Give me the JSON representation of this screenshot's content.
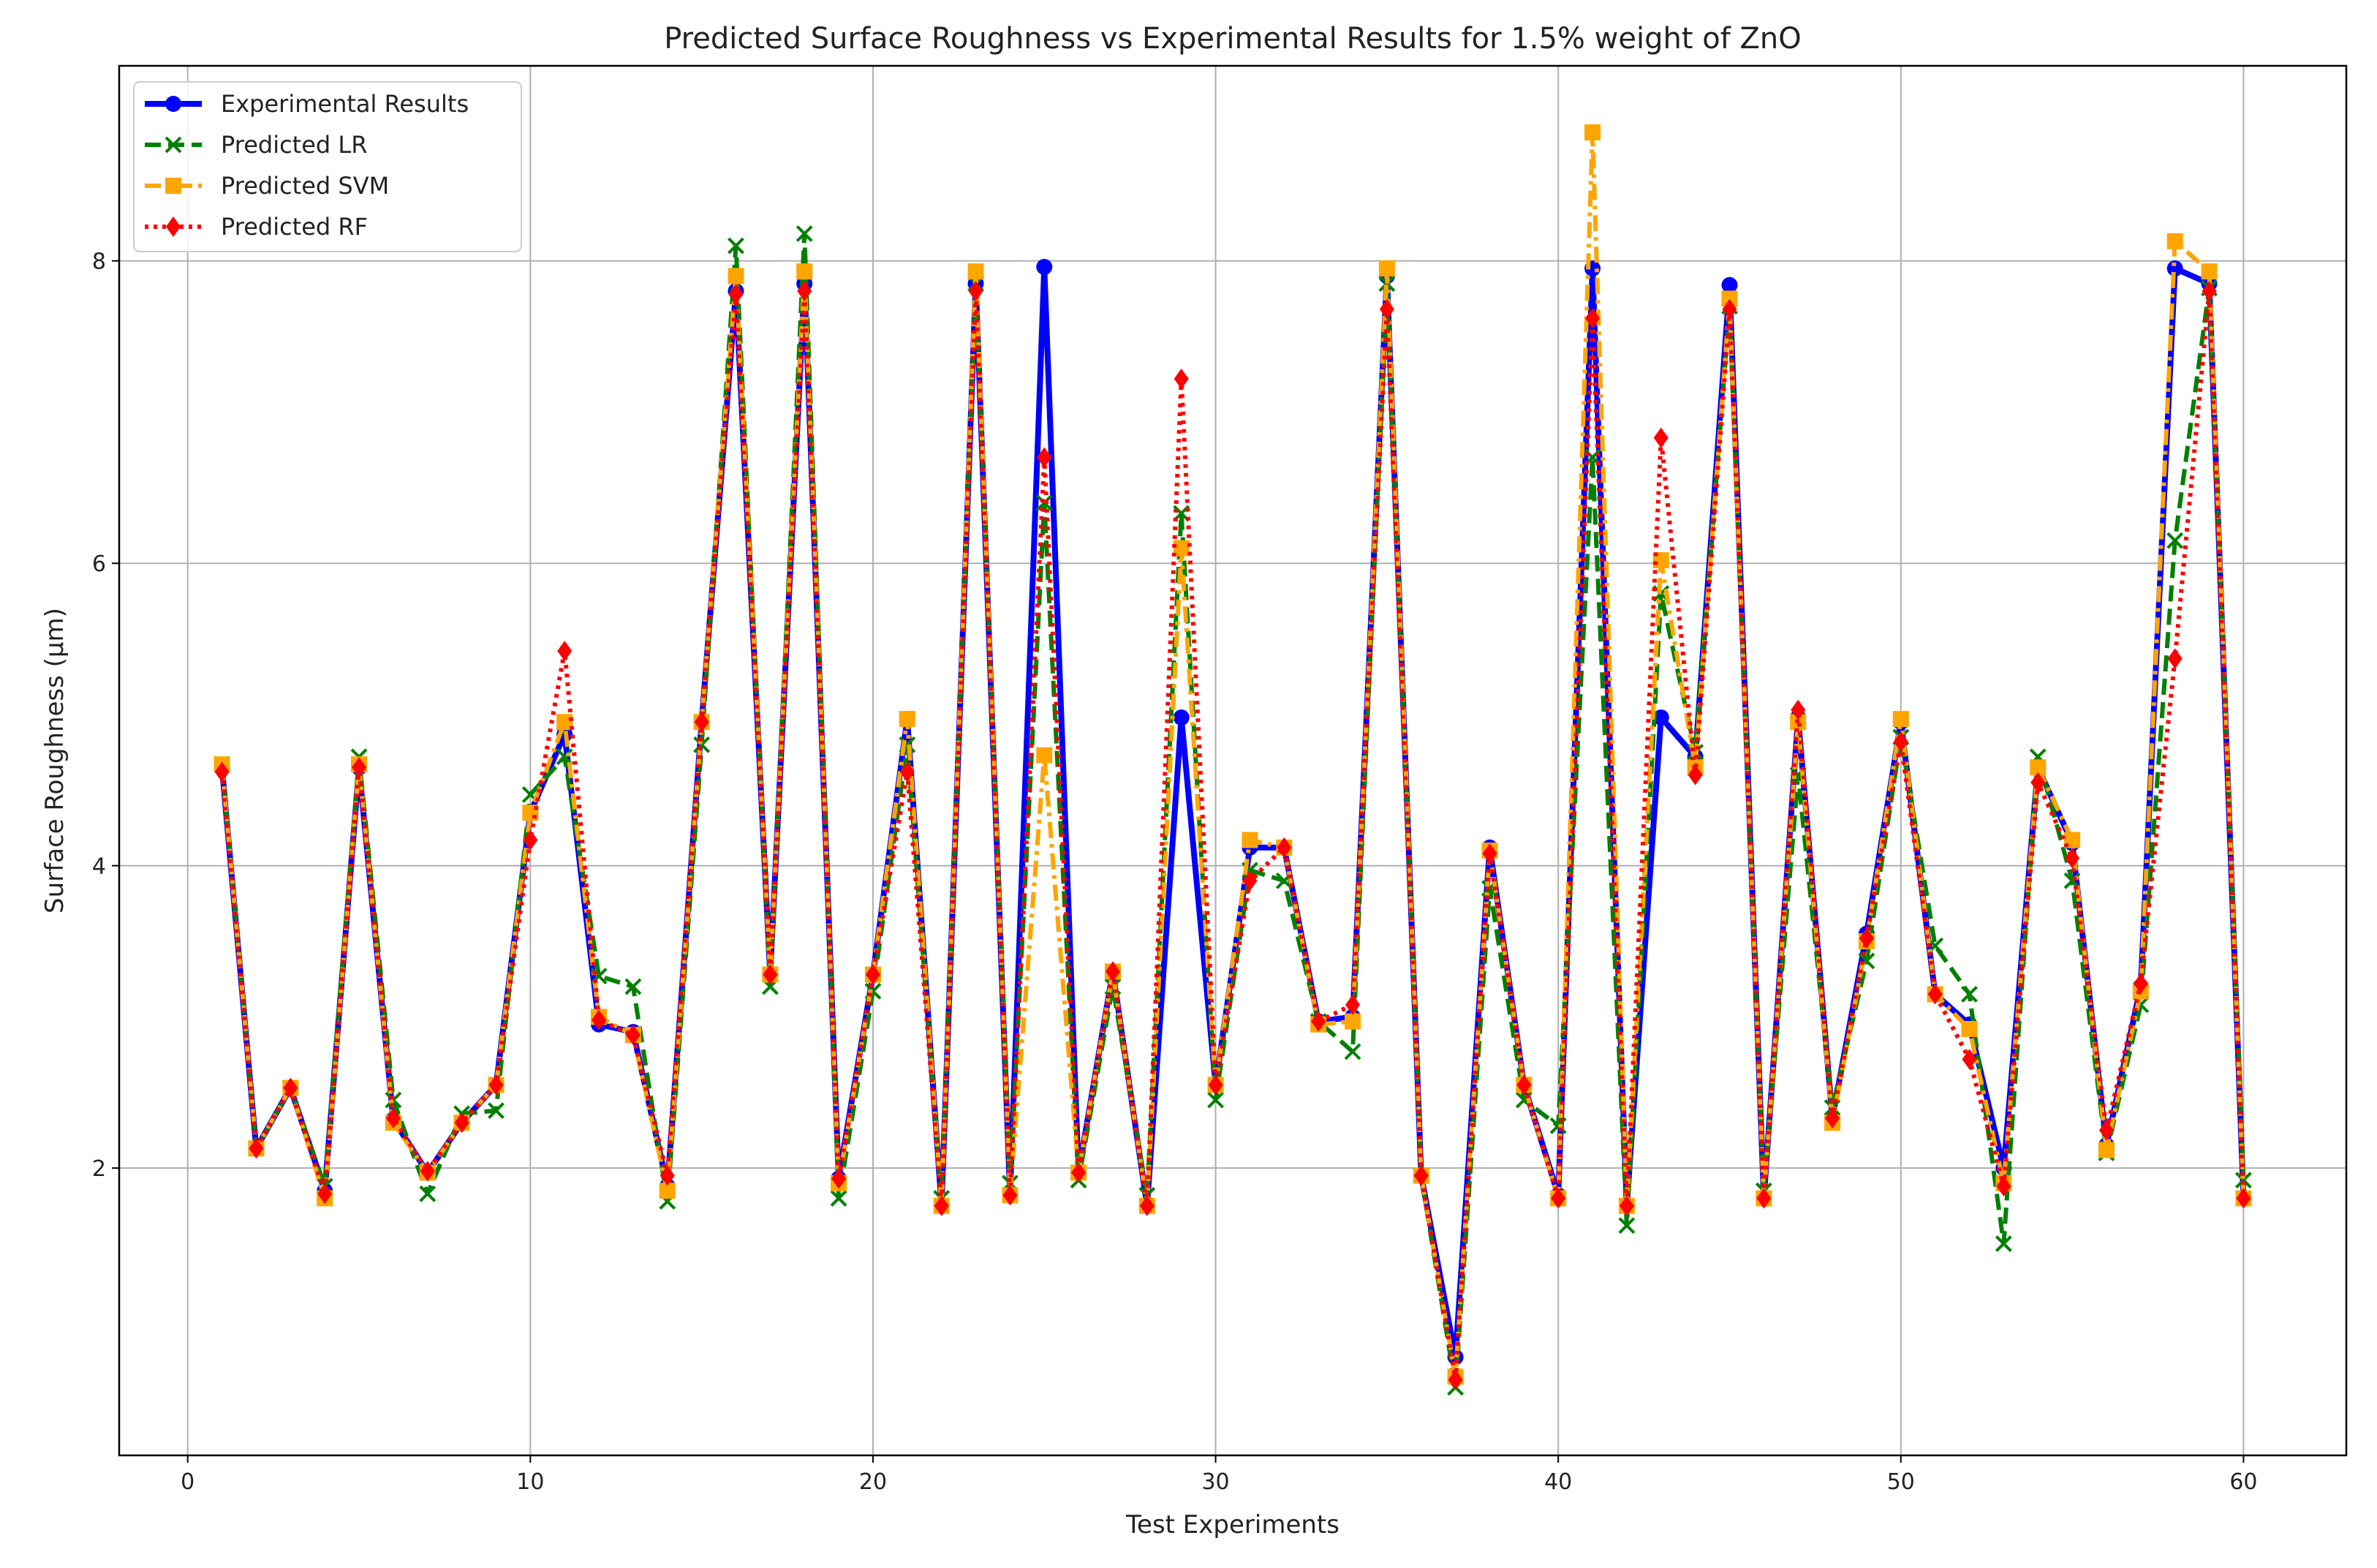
{
  "chart_data": {
    "type": "line",
    "title": "Predicted Surface Roughness vs Experimental Results for 1.5% weight of ZnO",
    "xlabel": "Test Experiments",
    "ylabel": "Surface Roughness (µm)",
    "xlim": [
      -2,
      63
    ],
    "ylim": [
      0.1,
      9.29
    ],
    "xticks": [
      0,
      10,
      20,
      30,
      40,
      50,
      60
    ],
    "yticks": [
      2,
      4,
      6,
      8
    ],
    "grid": true,
    "legend_position": "top-left",
    "x": [
      1,
      2,
      3,
      4,
      5,
      6,
      7,
      8,
      9,
      10,
      11,
      12,
      13,
      14,
      15,
      16,
      17,
      18,
      19,
      20,
      21,
      22,
      23,
      24,
      25,
      26,
      27,
      28,
      29,
      30,
      31,
      32,
      33,
      34,
      35,
      36,
      37,
      38,
      39,
      40,
      41,
      42,
      43,
      44,
      45,
      46,
      47,
      48,
      49,
      50,
      51,
      52,
      53,
      54,
      55,
      56,
      57,
      58,
      59,
      60
    ],
    "series": [
      {
        "name": "Experimental Results",
        "color": "#0000ff",
        "marker": "circle",
        "style": "solid",
        "values": [
          4.65,
          2.13,
          2.53,
          1.85,
          4.65,
          2.32,
          1.97,
          2.3,
          2.55,
          4.35,
          4.87,
          2.95,
          2.9,
          1.88,
          4.95,
          7.8,
          3.28,
          7.85,
          1.93,
          3.28,
          4.97,
          1.75,
          7.85,
          1.82,
          7.96,
          1.97,
          3.3,
          1.75,
          4.98,
          2.55,
          4.12,
          4.12,
          2.97,
          3.0,
          7.9,
          1.95,
          0.75,
          4.12,
          2.55,
          1.82,
          7.95,
          1.75,
          4.98,
          4.72,
          7.84,
          1.8,
          4.98,
          2.33,
          3.55,
          4.95,
          3.15,
          2.95,
          2.0,
          4.65,
          4.15,
          2.15,
          3.2,
          7.95,
          7.85,
          1.8
        ]
      },
      {
        "name": "Predicted LR",
        "color": "#008000",
        "marker": "x",
        "style": "dashed",
        "values": [
          4.67,
          2.13,
          2.53,
          1.88,
          4.72,
          2.45,
          1.83,
          2.36,
          2.38,
          4.47,
          4.72,
          3.27,
          3.2,
          1.78,
          4.8,
          8.1,
          3.2,
          8.18,
          1.8,
          3.17,
          4.8,
          1.8,
          7.85,
          1.9,
          6.4,
          1.92,
          3.2,
          1.82,
          6.33,
          2.45,
          3.97,
          3.9,
          2.97,
          2.77,
          7.85,
          1.95,
          0.55,
          3.85,
          2.45,
          2.28,
          6.7,
          1.62,
          5.8,
          4.75,
          7.7,
          1.85,
          4.6,
          2.4,
          3.37,
          4.85,
          3.47,
          3.15,
          1.5,
          4.72,
          3.9,
          2.1,
          3.08,
          6.15,
          7.82,
          1.92
        ]
      },
      {
        "name": "Predicted SVM",
        "color": "#ffa500",
        "marker": "square",
        "style": "dashdot",
        "values": [
          4.67,
          2.13,
          2.53,
          1.8,
          4.67,
          2.3,
          1.97,
          2.3,
          2.55,
          4.35,
          4.95,
          3.0,
          2.88,
          1.85,
          4.95,
          7.9,
          3.28,
          7.93,
          1.9,
          3.28,
          4.97,
          1.75,
          7.93,
          1.82,
          4.73,
          1.97,
          3.3,
          1.75,
          6.1,
          2.55,
          4.17,
          4.12,
          2.95,
          2.97,
          7.95,
          1.95,
          0.62,
          4.1,
          2.55,
          1.8,
          8.85,
          1.75,
          6.02,
          4.65,
          7.75,
          1.8,
          4.95,
          2.3,
          3.5,
          4.97,
          3.15,
          2.92,
          1.9,
          4.65,
          4.17,
          2.12,
          3.17,
          8.13,
          7.93,
          1.8
        ]
      },
      {
        "name": "Predicted RF",
        "color": "#ff0000",
        "marker": "diamond",
        "style": "dotted",
        "values": [
          4.62,
          2.13,
          2.53,
          1.83,
          4.65,
          2.33,
          1.98,
          2.3,
          2.55,
          4.17,
          5.42,
          2.98,
          2.88,
          1.95,
          4.95,
          7.78,
          3.28,
          7.8,
          1.93,
          3.28,
          4.62,
          1.75,
          7.8,
          1.82,
          6.7,
          1.97,
          3.3,
          1.75,
          7.22,
          2.55,
          3.9,
          4.12,
          2.97,
          3.08,
          7.68,
          1.95,
          0.6,
          4.08,
          2.55,
          1.8,
          7.62,
          1.75,
          6.83,
          4.6,
          7.68,
          1.8,
          5.03,
          2.33,
          3.52,
          4.82,
          3.15,
          2.72,
          1.88,
          4.55,
          4.05,
          2.25,
          3.22,
          5.37,
          7.8,
          1.8
        ]
      }
    ]
  }
}
